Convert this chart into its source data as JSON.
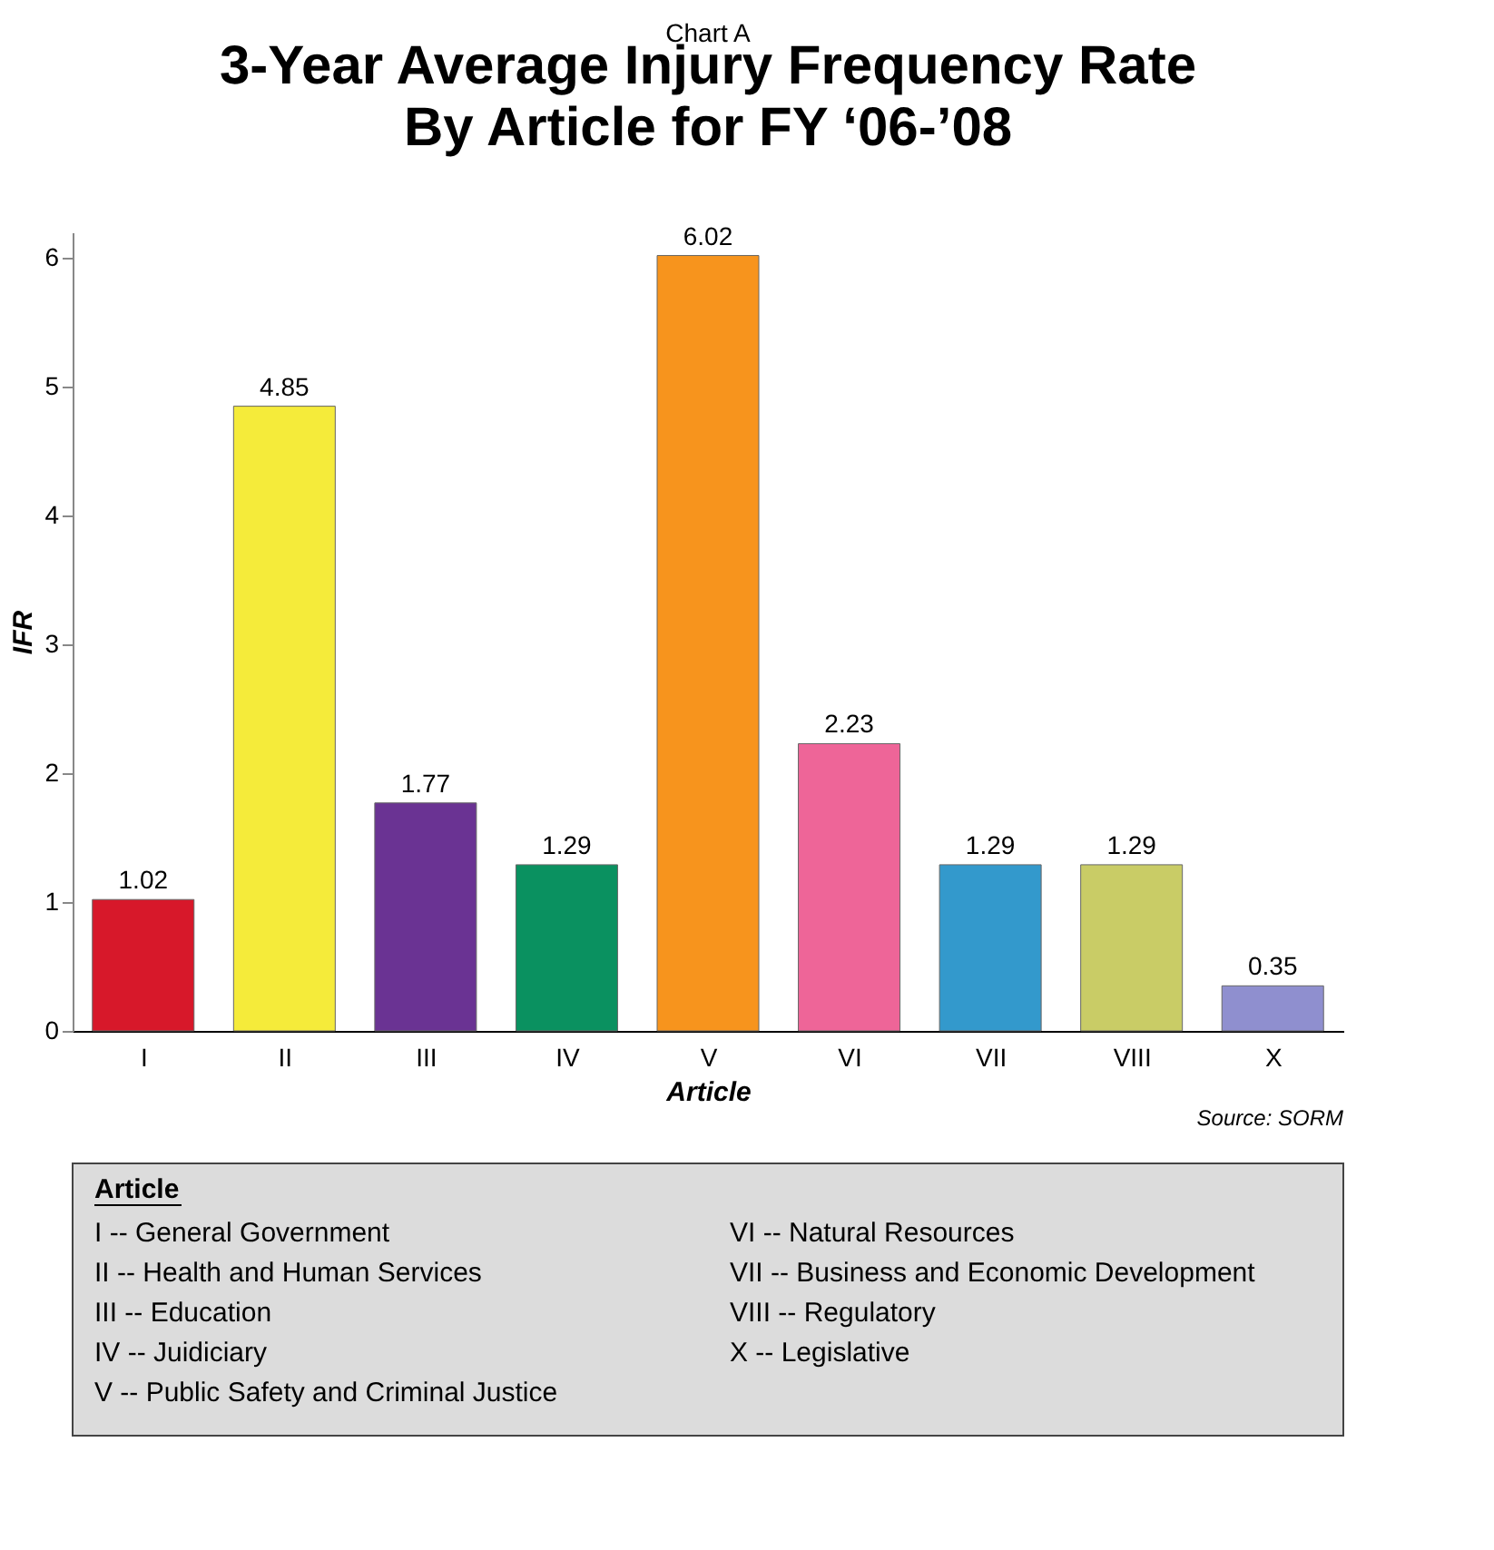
{
  "chart_data": {
    "type": "bar",
    "subtitle": "Chart A",
    "title": "3-Year Average Injury Frequency Rate\nBy Article for FY ‘06-’08",
    "categories": [
      "I",
      "II",
      "III",
      "IV",
      "V",
      "VI",
      "VII",
      "VIII",
      "X"
    ],
    "values": [
      1.02,
      4.85,
      1.77,
      1.29,
      6.02,
      2.23,
      1.29,
      1.29,
      0.35
    ],
    "colors": [
      "#d7182a",
      "#f5eb3a",
      "#6a3393",
      "#0a9160",
      "#f7941d",
      "#ee6598",
      "#3399cc",
      "#c9cc66",
      "#8f8fcf"
    ],
    "data_labels": true,
    "xlabel": "Article",
    "ylabel": "IFR",
    "ylim": [
      0,
      6.2
    ],
    "yticks": [
      0,
      1,
      2,
      3,
      4,
      5,
      6
    ],
    "grid": false,
    "legend_title": "Article",
    "annotations": [
      "Source: SORM",
      "I -- General Government",
      "II -- Health and Human Services",
      "III -- Education",
      "IV -- Juidiciary",
      "V -- Public Safety and Criminal Justice",
      "VI -- Natural Resources",
      "VII -- Business and Economic Development",
      "VIII -- Regulatory",
      "X -- Legislative"
    ]
  }
}
